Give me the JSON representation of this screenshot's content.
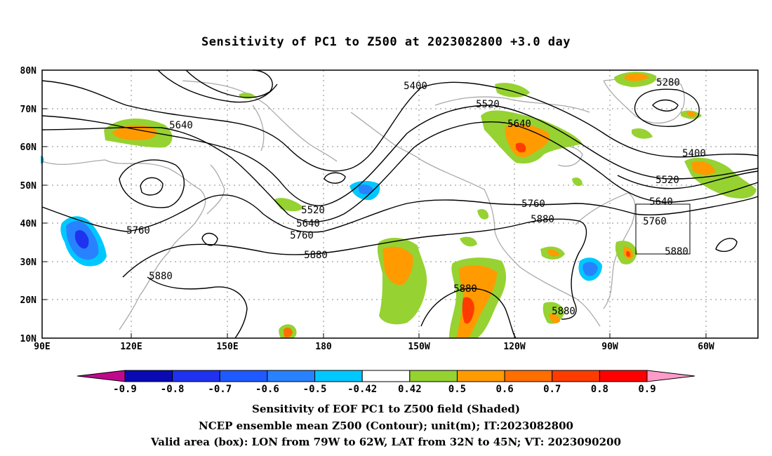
{
  "title": "Sensitivity of PC1 to Z500 at 2023082800 +3.0 day",
  "axes": {
    "lat_labels": [
      "80N",
      "70N",
      "60N",
      "50N",
      "40N",
      "30N",
      "20N",
      "10N"
    ],
    "lon_labels": [
      "90E",
      "120E",
      "150E",
      "180",
      "150W",
      "120W",
      "90W",
      "60W"
    ]
  },
  "contour_labels": [
    "5400",
    "5520",
    "5640",
    "5280",
    "5640",
    "5400",
    "5520",
    "5640",
    "5760",
    "5880",
    "5760",
    "5520",
    "5640",
    "5760",
    "5880",
    "5880",
    "5880",
    "5880",
    "5640",
    "5760",
    "5880"
  ],
  "valid_box": {
    "lon_from": "79W",
    "lon_to": "62W",
    "lat_from": "32N",
    "lat_to": "45N"
  },
  "colorbar": {
    "labels": [
      "-0.9",
      "-0.8",
      "-0.7",
      "-0.6",
      "-0.5",
      "-0.42",
      "0.42",
      "0.5",
      "0.6",
      "0.7",
      "0.8",
      "0.9"
    ],
    "colors": [
      "#c0088c",
      "#0a0ab4",
      "#1e32f0",
      "#1e5aff",
      "#2882ff",
      "#00c8ff",
      "#ffffff",
      "#96d232",
      "#ff9b00",
      "#ff6e00",
      "#ff3c00",
      "#ff0000",
      "#ff9bc8"
    ]
  },
  "captions": {
    "line1": "Sensitivity of EOF PC1 to Z500 field (Shaded)",
    "line2": "NCEP ensemble mean Z500 (Contour); unit(m); IT:2023082800",
    "line3": "Valid area (box): LON from 79W to 62W, LAT from 32N to 45N; VT: 2023090200"
  }
}
